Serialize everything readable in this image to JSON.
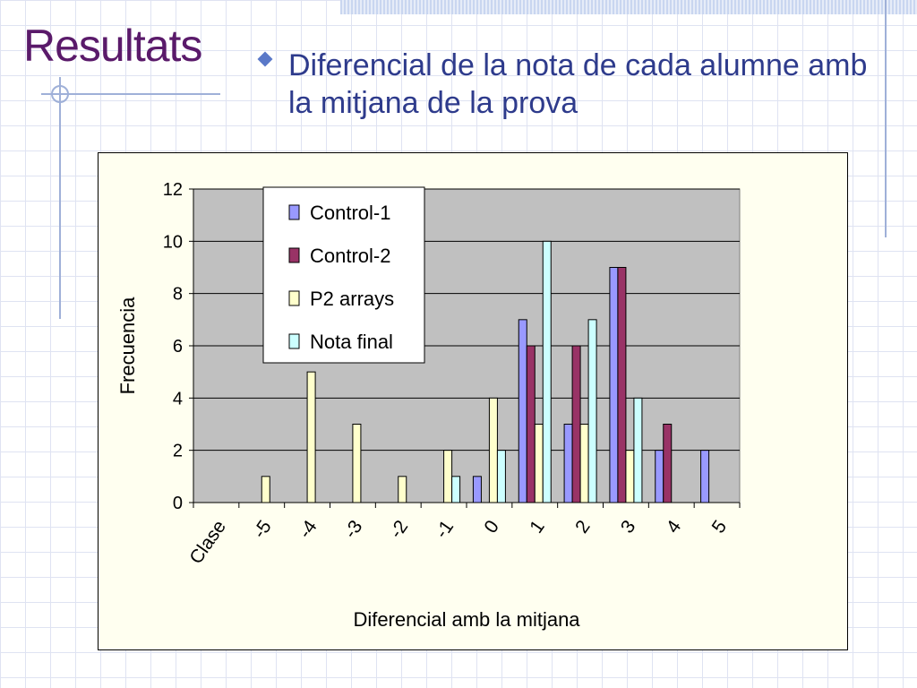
{
  "slide": {
    "title": "Resultats",
    "subtitle": "Diferencial de la nota de cada alumne  amb la mitjana de la prova"
  },
  "colors": {
    "title": "#5a1a6a",
    "subtitle": "#2e3b8c",
    "plot_area": "#c0c0c0",
    "chart_bg": "#fffff0"
  },
  "chart_data": {
    "type": "bar",
    "title": "",
    "xlabel": "Diferencial amb la mitjana",
    "ylabel": "Frecuencia",
    "ylim": [
      0,
      12
    ],
    "yticks": [
      0,
      2,
      4,
      6,
      8,
      10,
      12
    ],
    "grid": true,
    "legend": "top-left inside plot",
    "categories": [
      "Clase",
      "-5",
      "-4",
      "-3",
      "-2",
      "-1",
      "0",
      "1",
      "2",
      "3",
      "4",
      "5"
    ],
    "series": [
      {
        "name": "Control-1",
        "color": "#9999ff",
        "values": [
          0,
          0,
          0,
          0,
          0,
          0,
          1,
          7,
          3,
          9,
          2,
          2
        ]
      },
      {
        "name": "Control-2",
        "color": "#993366",
        "values": [
          0,
          0,
          0,
          0,
          0,
          0,
          0,
          6,
          6,
          9,
          3,
          0
        ]
      },
      {
        "name": "P2 arrays",
        "color": "#ffffcc",
        "values": [
          0,
          1,
          5,
          3,
          1,
          2,
          4,
          3,
          3,
          2,
          0,
          0
        ]
      },
      {
        "name": "Nota final",
        "color": "#ccffff",
        "values": [
          0,
          0,
          0,
          0,
          0,
          1,
          2,
          10,
          7,
          4,
          0,
          0
        ]
      }
    ]
  }
}
